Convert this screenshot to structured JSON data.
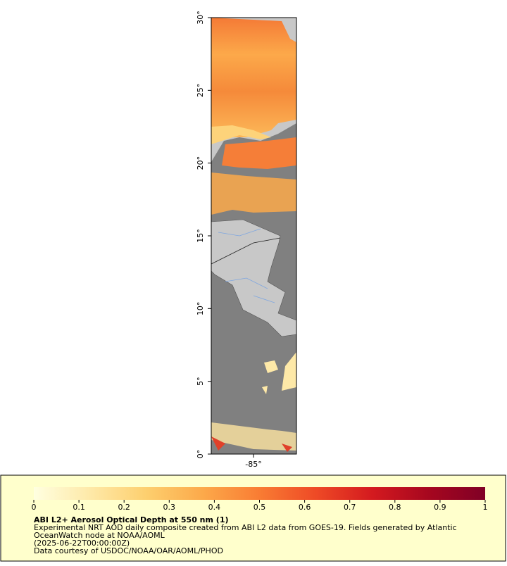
{
  "map": {
    "ylim": [
      0,
      30
    ],
    "yticks": [
      {
        "value": 0,
        "label": "0°"
      },
      {
        "value": 5,
        "label": "5°"
      },
      {
        "value": 10,
        "label": "10°"
      },
      {
        "value": 15,
        "label": "15°"
      },
      {
        "value": 20,
        "label": "20°"
      },
      {
        "value": 25,
        "label": "25°"
      },
      {
        "value": 30,
        "label": "30°"
      }
    ],
    "xlim": [
      -87.9,
      -82.05
    ],
    "xticks": [
      {
        "value": -85,
        "label": "-85°"
      }
    ]
  },
  "colorbar": {
    "range": [
      0,
      1
    ],
    "ticks": [
      0,
      0.1,
      0.2,
      0.3,
      0.4,
      0.5,
      0.6,
      0.7,
      0.8,
      0.9,
      1
    ],
    "colors": [
      "#ffffe0",
      "#fee9a8",
      "#fdcf6e",
      "#fca94a",
      "#f97c33",
      "#ee4a26",
      "#d41a1f",
      "#a6071f",
      "#800026"
    ]
  },
  "legend": {
    "title": "ABI L2+ Aerosol Optical Depth at 550 nm (1)",
    "lines": [
      "Experimental NRT AOD daily composite created from ABI L2 data from GOES-19. Fields generated by Atlantic",
      "OceanWatch node at NOAA/AOML",
      "(2025-06-22T00:00:00Z)",
      "Data courtesy of USDOC/NOAA/OAR/AOML/PHOD"
    ]
  }
}
